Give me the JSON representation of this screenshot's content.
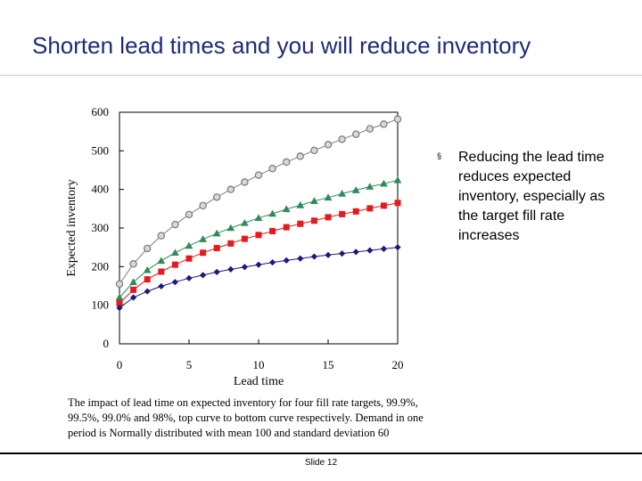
{
  "slide": {
    "title": "Shorten lead times and you will reduce inventory",
    "caption": "The impact of lead time on expected inventory for four fill rate targets, 99.9%, 99.5%, 99.0% and 98%, top curve to bottom curve respectively. Demand in one period is Normally distributed with mean 100 and standard deviation 60",
    "bullet": "Reducing the lead time reduces expected inventory, especially as the target fill rate increases",
    "bullet_marker": "§",
    "slide_number": "Slide 12"
  },
  "chart_data": {
    "type": "line",
    "title": "",
    "xlabel": "Lead time",
    "ylabel": "Expected inventory",
    "xlim": [
      0,
      20
    ],
    "ylim": [
      0,
      600
    ],
    "xticks": [
      0,
      5,
      10,
      15,
      20
    ],
    "yticks": [
      0,
      100,
      200,
      300,
      400,
      500,
      600
    ],
    "grid": false,
    "x": [
      0,
      1,
      2,
      3,
      4,
      5,
      6,
      7,
      8,
      9,
      10,
      11,
      12,
      13,
      14,
      15,
      16,
      17,
      18,
      19,
      20
    ],
    "series": [
      {
        "name": "99.9%",
        "marker": "circle",
        "color": "#808080",
        "fill": "#d9d9d9",
        "values": [
          155,
          207,
          247,
          280,
          309,
          335,
          358,
          380,
          400,
          419,
          437,
          454,
          471,
          486,
          501,
          516,
          530,
          543,
          557,
          569,
          582
        ]
      },
      {
        "name": "99.5%",
        "marker": "triangle",
        "color": "#2e8b57",
        "fill": "#2e8b57",
        "values": [
          120,
          160,
          191,
          215,
          236,
          254,
          271,
          286,
          300,
          313,
          326,
          337,
          349,
          359,
          370,
          379,
          389,
          398,
          407,
          415,
          424
        ]
      },
      {
        "name": "99.0%",
        "marker": "square",
        "color": "#e41a1c",
        "fill": "#e41a1c",
        "values": [
          105,
          140,
          167,
          187,
          205,
          221,
          236,
          248,
          260,
          272,
          282,
          292,
          302,
          311,
          319,
          328,
          336,
          343,
          351,
          358,
          365
        ]
      },
      {
        "name": "98%",
        "marker": "diamond",
        "color": "#1a1a7a",
        "fill": "#1a1a7a",
        "values": [
          93,
          120,
          136,
          149,
          160,
          170,
          178,
          186,
          193,
          199,
          205,
          211,
          216,
          221,
          226,
          230,
          234,
          238,
          242,
          246,
          250
        ]
      }
    ]
  }
}
